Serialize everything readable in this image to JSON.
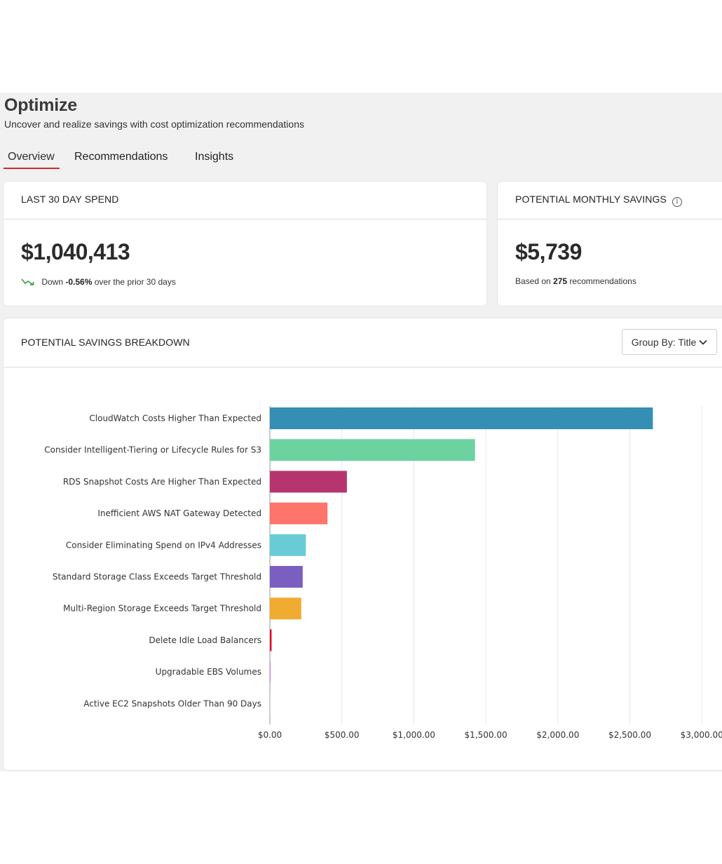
{
  "page": {
    "title": "Optimize",
    "subtitle": "Uncover and realize savings with cost optimization recommendations"
  },
  "tabs": [
    {
      "label": "Overview",
      "active": true
    },
    {
      "label": "Recommendations",
      "active": false
    },
    {
      "label": "Insights",
      "active": false
    }
  ],
  "spend_card": {
    "title": "LAST 30 DAY SPEND",
    "value": "$1,040,413",
    "trend_icon": "trend-down-icon",
    "trend_prefix": "Down",
    "trend_value": "-0.56%",
    "trend_suffix": "over the prior 30 days",
    "trend_color": "#3c9a3c"
  },
  "savings_card": {
    "title": "POTENTIAL MONTHLY SAVINGS",
    "info_icon": "info-icon",
    "value": "$5,739",
    "note_prefix": "Based on",
    "note_count": "275",
    "note_suffix": "recommendations"
  },
  "breakdown": {
    "title": "POTENTIAL SAVINGS BREAKDOWN",
    "group_by_label": "Group By: Title",
    "chevron_icon": "chevron-down-icon"
  },
  "chart_data": {
    "type": "bar",
    "orientation": "horizontal",
    "categories": [
      "CloudWatch Costs Higher Than Expected",
      "Consider Intelligent-Tiering or Lifecycle Rules for S3",
      "RDS Snapshot Costs Are Higher Than Expected",
      "Inefficient AWS NAT Gateway Detected",
      "Consider Eliminating Spend on IPv4 Addresses",
      "Standard Storage Class Exceeds Target Threshold",
      "Multi-Region Storage Exceeds Target Threshold",
      "Delete Idle Load Balancers",
      "Upgradable EBS Volumes",
      "Active EC2 Snapshots Older Than 90 Days"
    ],
    "values": [
      2660,
      1425,
      535,
      400,
      250,
      228,
      218,
      12,
      6,
      1
    ],
    "colors": [
      "#358eb4",
      "#6cd3a0",
      "#b6356f",
      "#ff746b",
      "#68ccd6",
      "#7a5fc1",
      "#f0ab31",
      "#e0102e",
      "#d88cf0",
      "#cccccc"
    ],
    "x_ticks": [
      "$0.00",
      "$500.00",
      "$1,000.00",
      "$1,500.00",
      "$2,000.00",
      "$2,500.00",
      "$3,000.00"
    ],
    "xlim": [
      0,
      3000
    ],
    "grid": true
  }
}
